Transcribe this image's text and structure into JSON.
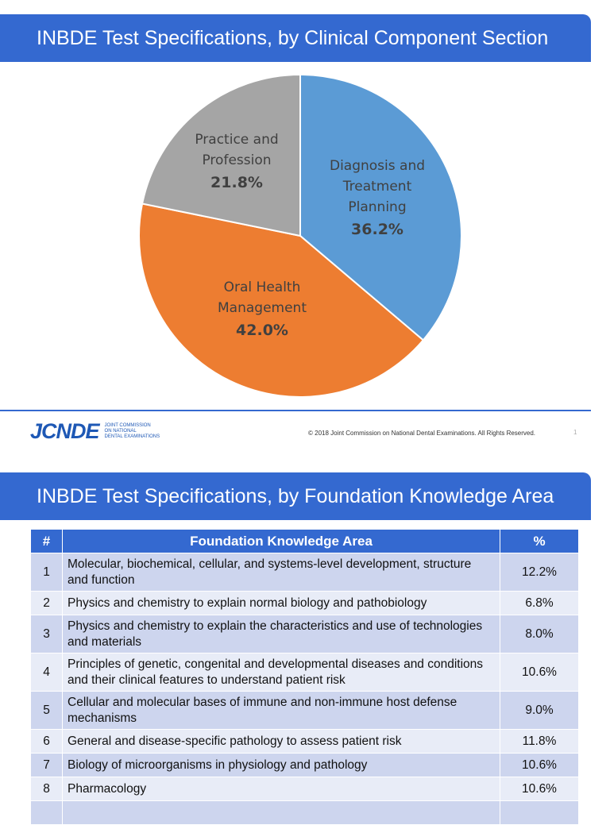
{
  "slide1": {
    "title": "INBDE Test Specifications, by Clinical Component Section",
    "footer": {
      "logo": "JCNDE",
      "logo_sub": [
        "JOINT COMMISSION",
        "ON NATIONAL",
        "DENTAL EXAMINATIONS"
      ],
      "copyright": "© 2018 Joint Commission on National Dental Examinations. All Rights Reserved.",
      "page": "1"
    }
  },
  "chart_data": {
    "type": "pie",
    "title": "INBDE Test Specifications, by Clinical Component Section",
    "slices": [
      {
        "label": [
          "Diagnosis and",
          "Treatment",
          "Planning"
        ],
        "value": 36.2,
        "pct_label": "36.2%",
        "color": "#5b9bd5"
      },
      {
        "label": [
          "Oral Health",
          "Management"
        ],
        "value": 42.0,
        "pct_label": "42.0%",
        "color": "#ed7d31"
      },
      {
        "label": [
          "Practice and",
          "Profession"
        ],
        "value": 21.8,
        "pct_label": "21.8%",
        "color": "#a5a5a5"
      }
    ],
    "legend": "none"
  },
  "slide2": {
    "title": "INBDE Test Specifications, by Foundation Knowledge Area",
    "table": {
      "headers": [
        "#",
        "Foundation Knowledge Area",
        "%"
      ],
      "rows": [
        {
          "num": "1",
          "area": "Molecular, biochemical, cellular, and systems-level development, structure and function",
          "pct": "12.2%"
        },
        {
          "num": "2",
          "area": "Physics and chemistry to explain normal biology and pathobiology",
          "pct": "6.8%"
        },
        {
          "num": "3",
          "area": "Physics and chemistry to explain the characteristics and use of technologies and materials",
          "pct": "8.0%"
        },
        {
          "num": "4",
          "area": "Principles of genetic, congenital and developmental diseases and conditions and their clinical features to understand patient risk",
          "pct": "10.6%"
        },
        {
          "num": "5",
          "area": "Cellular and molecular bases of immune and non-immune host defense mechanisms",
          "pct": "9.0%"
        },
        {
          "num": "6",
          "area": "General and disease-specific pathology to assess patient risk",
          "pct": "11.8%"
        },
        {
          "num": "7",
          "area": "Biology of microorganisms in physiology and pathology",
          "pct": "10.6%"
        },
        {
          "num": "8",
          "area": "Pharmacology",
          "pct": "10.6%"
        }
      ]
    }
  }
}
